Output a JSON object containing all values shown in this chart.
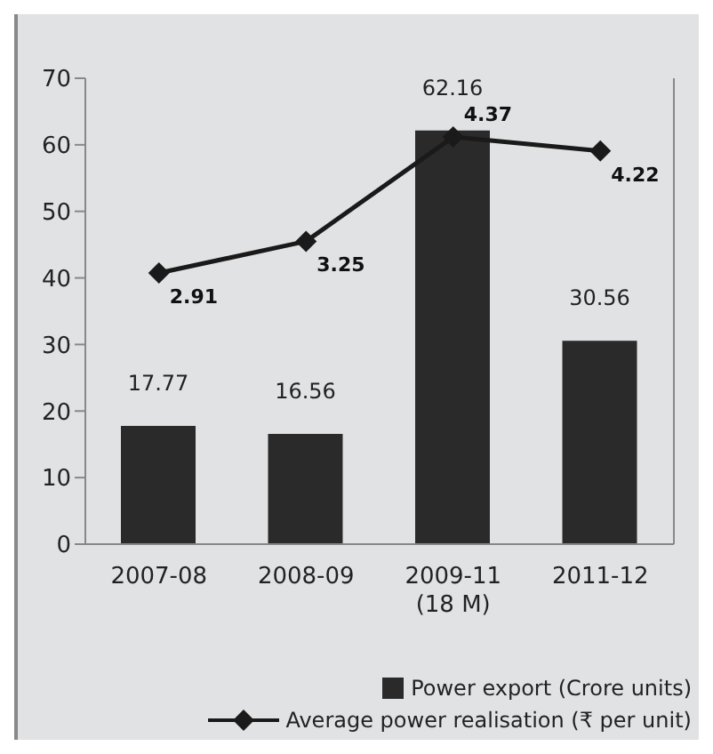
{
  "chart_data": {
    "type": "bar",
    "categories": [
      "2007-08",
      "2008-09",
      "2009-11\n(18 M)",
      "2011-12"
    ],
    "series": [
      {
        "name": "Power export (Crore units)",
        "color": "#2b2a2a",
        "values": [
          17.77,
          16.56,
          62.16,
          30.56
        ]
      },
      {
        "name": "Average power realisation (₹ per unit)",
        "type": "line",
        "axis": "y2",
        "color": "#1a1a1a",
        "values": [
          2.91,
          3.25,
          4.37,
          4.22
        ]
      }
    ],
    "ylim": [
      0,
      70
    ],
    "yticks": [
      0,
      10,
      20,
      30,
      40,
      50,
      60,
      70
    ],
    "y2lim": [
      0,
      5
    ],
    "tick_labels": [
      "x",
      "y"
    ],
    "data_labels": true,
    "marker": "diamond",
    "line_style": "solid",
    "legend": "bottom right"
  }
}
